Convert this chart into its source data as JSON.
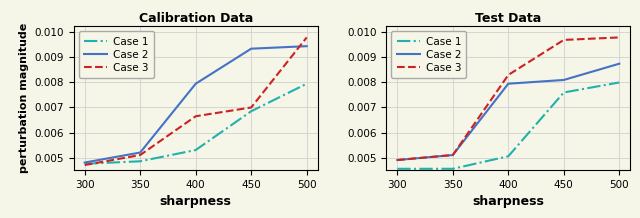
{
  "x": [
    300,
    350,
    400,
    450,
    500
  ],
  "calib": {
    "case1": [
      0.00475,
      0.00485,
      0.0053,
      0.00685,
      0.00795
    ],
    "case2": [
      0.0048,
      0.0052,
      0.00795,
      0.00935,
      0.00945
    ],
    "case3": [
      0.0047,
      0.0051,
      0.00665,
      0.007,
      0.0098
    ]
  },
  "test": {
    "case1": [
      0.00455,
      0.00455,
      0.00505,
      0.0076,
      0.008
    ],
    "case2": [
      0.0049,
      0.0051,
      0.00795,
      0.0081,
      0.00875
    ],
    "case3": [
      0.0049,
      0.0051,
      0.0083,
      0.0097,
      0.0098
    ]
  },
  "color_case1": "#20b2aa",
  "color_case2": "#4472c4",
  "color_case3": "#cc2222",
  "title_calib": "Calibration Data",
  "title_test": "Test Data",
  "xlabel": "sharpness",
  "ylabel": "perturbation magnitude",
  "ylim": [
    0.0045,
    0.01025
  ],
  "yticks": [
    0.005,
    0.006,
    0.007,
    0.008,
    0.009,
    0.01
  ],
  "xticks": [
    300,
    350,
    400,
    450,
    500
  ],
  "bg_color": "#f5f5e8",
  "fig_bg_color": "#f5f5e8"
}
